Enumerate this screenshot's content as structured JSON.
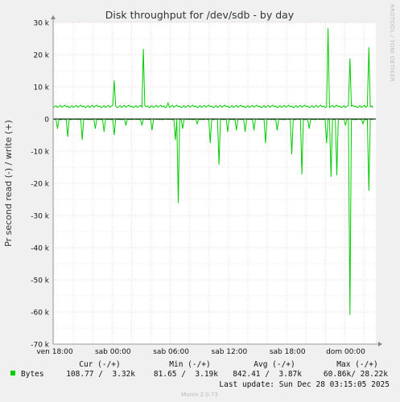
{
  "title": "Disk throughput for /dev/sdb - by day",
  "ylabel": "Pr second read (-) / write (+)",
  "side_text": "RRDTOOL / TOBI OETIKER",
  "footer": "Munin 2.0.73",
  "colors": {
    "series": "#00cc00",
    "zero_line": "#000000",
    "grid_minor": "#e7c0c0",
    "grid_major": "#e0a0a0"
  },
  "legend": {
    "headers": [
      "Cur (-/+)",
      "Min (-/+)",
      "Avg (-/+)",
      "Max (-/+)"
    ],
    "series_name": "Bytes",
    "values": [
      "108.77 /  3.32k",
      "81.65 /  3.19k",
      "842.41 /  3.87k",
      "60.86k/ 28.22k"
    ],
    "last_update": "Last update: Sun Dec 28 03:15:05 2025"
  },
  "chart_data": {
    "type": "line",
    "title": "Disk throughput for /dev/sdb - by day",
    "ylabel": "Pr second read (-) / write (+)",
    "ylim": [
      -70000,
      30000
    ],
    "yticks": [
      30000,
      20000,
      10000,
      0,
      -10000,
      -20000,
      -30000,
      -40000,
      -50000,
      -60000,
      -70000
    ],
    "ytick_labels": [
      "30 k",
      "20 k",
      "10 k",
      "0",
      "-10 k",
      "-20 k",
      "-30 k",
      "-40 k",
      "-50 k",
      "-60 k",
      "-70 k"
    ],
    "xlim_hours": [
      0,
      30.5
    ],
    "xticks_hours": [
      0,
      6,
      12,
      18,
      24,
      30
    ],
    "xtick_labels": [
      "ven 18:00",
      "sab 00:00",
      "sab 06:00",
      "sab 12:00",
      "sab 18:00",
      "dom 00:00"
    ],
    "grid": true,
    "series": [
      {
        "name": "Bytes",
        "write_baseline": 3900,
        "write_spikes": [
          [
            5.9,
            12000
          ],
          [
            9.0,
            21800
          ],
          [
            11.5,
            5000
          ],
          [
            28.0,
            28200
          ],
          [
            30.3,
            18800
          ],
          [
            32.2,
            22300
          ]
        ],
        "read_spikes": [
          [
            0.1,
            -3000
          ],
          [
            1.2,
            -5500
          ],
          [
            2.7,
            -6500
          ],
          [
            4.0,
            -3000
          ],
          [
            4.9,
            -4000
          ],
          [
            6.0,
            -5000
          ],
          [
            7.2,
            -2000
          ],
          [
            8.8,
            -2000
          ],
          [
            9.8,
            -3500
          ],
          [
            12.2,
            -6500
          ],
          [
            12.6,
            -26200
          ],
          [
            13.0,
            -3000
          ],
          [
            14.5,
            -1500
          ],
          [
            15.8,
            -7500
          ],
          [
            16.7,
            -14200
          ],
          [
            17.6,
            -4000
          ],
          [
            18.6,
            -3500
          ],
          [
            19.5,
            -4000
          ],
          [
            20.4,
            -3500
          ],
          [
            21.6,
            -7500
          ],
          [
            22.8,
            -3500
          ],
          [
            24.2,
            -11000
          ],
          [
            25.3,
            -17200
          ],
          [
            26.1,
            -3000
          ],
          [
            27.9,
            -7500
          ],
          [
            28.3,
            -18000
          ],
          [
            28.9,
            -17500
          ],
          [
            29.8,
            -2000
          ],
          [
            30.3,
            -60900
          ],
          [
            31.6,
            -1500
          ],
          [
            32.2,
            -22300
          ]
        ]
      }
    ]
  }
}
